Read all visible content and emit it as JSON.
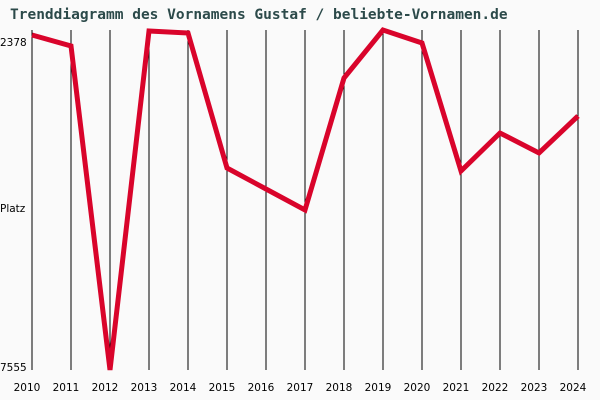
{
  "title": "Trenddiagramm des Vornamens Gustaf / beliebte-Vornamen.de",
  "colors": {
    "background": "#fafafa",
    "line": "#d9042b",
    "grid": "#000000",
    "title": "#2c4a4a"
  },
  "chart_data": {
    "type": "line",
    "title": "Trenddiagramm des Vornamens Gustaf / beliebte-Vornamen.de",
    "xlabel": "",
    "ylabel": "Platz",
    "y_inverted": true,
    "ylim": [
      2378,
      7555
    ],
    "y_tick_labels": [
      "2378",
      "7555"
    ],
    "categories": [
      "2010",
      "2011",
      "2012",
      "2013",
      "2014",
      "2015",
      "2016",
      "2017",
      "2018",
      "2019",
      "2020",
      "2021",
      "2022",
      "2023",
      "2024"
    ],
    "series": [
      {
        "name": "Gustaf",
        "values": [
          2454,
          2622,
          7555,
          2393,
          2424,
          4479,
          4799,
          5119,
          3109,
          2378,
          2576,
          4525,
          3946,
          4251,
          3687
        ]
      }
    ],
    "grid": {
      "vertical": true,
      "horizontal": false
    },
    "legend": null
  }
}
